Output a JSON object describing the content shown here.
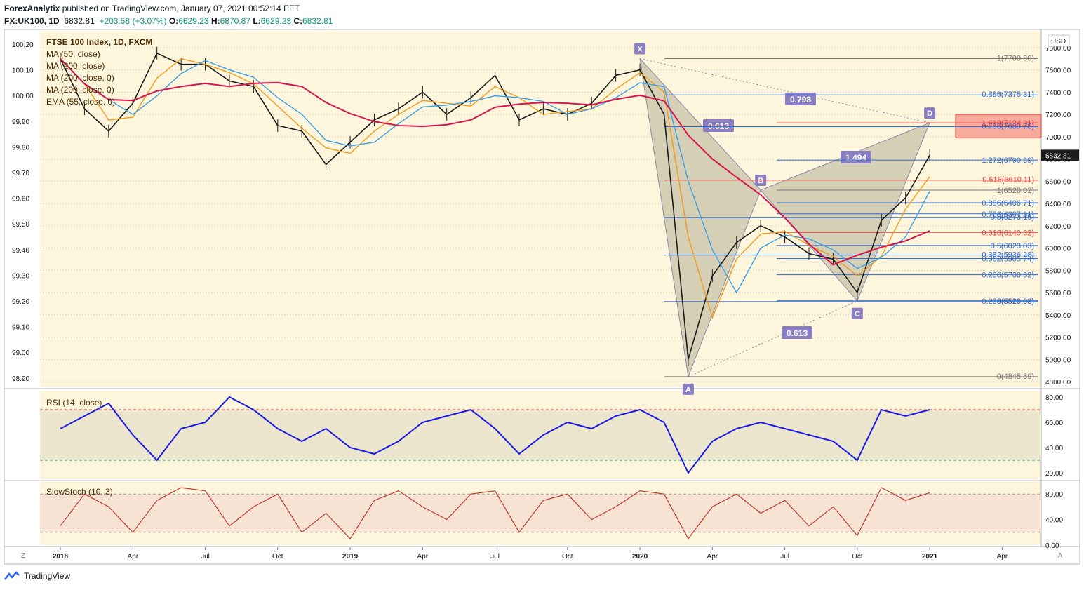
{
  "header": {
    "publisher": "ForexAnalytix",
    "published_text": "published on TradingView.com, January 07, 2021 00:52:14 EET"
  },
  "ohlc": {
    "symbol": "FX:UK100, 1D",
    "last": "6832.81",
    "change": "+203.58 (+3.07%)",
    "o_label": "O:",
    "o": "6629.23",
    "h_label": "H:",
    "h": "6870.87",
    "l_label": "L:",
    "l": "6629.23",
    "c_label": "C:",
    "c": "6832.81"
  },
  "footer": {
    "brand": "TradingView"
  },
  "colors": {
    "bg": "#fdf6dc",
    "ma50": "#f29a1b",
    "ma200": "#d6154f",
    "ema55": "#3aa0e6",
    "rsi": "#1a1ae6",
    "stoch": "#c0392b",
    "pattern_fill": "#c7c2a8",
    "fib_red": "#e53935",
    "fib_blue": "#2e6bd8",
    "fib_grey": "#777777",
    "label_bg": "#8b7fc4"
  },
  "chart_data": {
    "type": "line",
    "title": "FTSE 100 Index, 1D, FXCM",
    "indicators": [
      "MA (50, close)",
      "MA (200, close)",
      "MA (200, close, 0)",
      "MA (200, close, 0)",
      "EMA (55, close, 0)"
    ],
    "y_right_ticks": [
      "7800.00",
      "7600.00",
      "7400.00",
      "7200.00",
      "7000.00",
      "6800.00",
      "6600.00",
      "6400.00",
      "6200.00",
      "6000.00",
      "5800.00",
      "5600.00",
      "5400.00",
      "5200.00",
      "5000.00",
      "4800.00"
    ],
    "y_left_ticks": [
      "100.20",
      "100.10",
      "100.00",
      "99.90",
      "99.80",
      "99.70",
      "99.60",
      "99.50",
      "99.40",
      "99.30",
      "99.20",
      "99.10",
      "99.00",
      "98.90"
    ],
    "currency": "USD",
    "last_price_label": "6832.81",
    "ylim": [
      4750,
      7950
    ],
    "x_ticks": [
      "2018",
      "Apr",
      "Jul",
      "Oct",
      "2019",
      "Apr",
      "Jul",
      "Oct",
      "2020",
      "Apr",
      "Jul",
      "Oct",
      "2021",
      "Apr"
    ],
    "price_series": {
      "name": "UK100",
      "x": [
        "2018-01",
        "2018-02",
        "2018-03",
        "2018-04",
        "2018-05",
        "2018-06",
        "2018-07",
        "2018-08",
        "2018-09",
        "2018-10",
        "2018-11",
        "2018-12",
        "2019-01",
        "2019-02",
        "2019-03",
        "2019-04",
        "2019-05",
        "2019-06",
        "2019-07",
        "2019-08",
        "2019-09",
        "2019-10",
        "2019-11",
        "2019-12",
        "2020-01",
        "2020-02",
        "2020-03",
        "2020-04",
        "2020-05",
        "2020-06",
        "2020-07",
        "2020-08",
        "2020-09",
        "2020-10",
        "2020-11",
        "2020-12",
        "2021-01"
      ],
      "values": [
        7700,
        7250,
        7050,
        7300,
        7750,
        7650,
        7650,
        7500,
        7450,
        7100,
        7050,
        6750,
        6950,
        7150,
        7250,
        7400,
        7200,
        7350,
        7550,
        7150,
        7250,
        7200,
        7300,
        7550,
        7600,
        7200,
        5000,
        5750,
        6050,
        6200,
        6100,
        5950,
        5900,
        5600,
        6250,
        6450,
        6832.81
      ]
    },
    "harmonic_pattern": {
      "points": [
        {
          "label": "X",
          "x": "2020-01",
          "y": 7700.8
        },
        {
          "label": "A",
          "x": "2020-03",
          "y": 4845.59
        },
        {
          "label": "B",
          "x": "2020-06",
          "y": 6520.02
        },
        {
          "label": "C",
          "x": "2020-10",
          "y": 5526.03
        },
        {
          "label": "D",
          "x": "2021-01",
          "y": 7124.31
        }
      ],
      "ratios": [
        "0.613",
        "0.613",
        "0.798",
        "1.494"
      ]
    },
    "fib_levels_left": [
      {
        "label": "1(7700.80)",
        "y": 7700.8,
        "color": "grey"
      },
      {
        "label": "0.886(7375.31)",
        "y": 7375.31,
        "color": "blue"
      },
      {
        "label": "0.786(7089.78)",
        "y": 7089.78,
        "color": "blue"
      },
      {
        "label": "0.618(6610.11)",
        "y": 6610.11,
        "color": "red"
      },
      {
        "label": "0.5(6273.19)",
        "y": 6273.19,
        "color": "blue"
      },
      {
        "label": "0.382(5936.28)",
        "y": 5936.28,
        "color": "blue"
      },
      {
        "label": "0.236(5519.03)",
        "y": 5519.03,
        "color": "blue"
      },
      {
        "label": "0(4845.59)",
        "y": 4845.59,
        "color": "grey"
      }
    ],
    "fib_levels_right": [
      {
        "label": "1.618(7124.31)",
        "y": 7124.31,
        "color": "red"
      },
      {
        "label": "1.272(6790.39)",
        "y": 6790.39,
        "color": "blue"
      },
      {
        "label": "1(6520.02)",
        "y": 6520.02,
        "color": "grey"
      },
      {
        "label": "0.886(6406.71)",
        "y": 6406.71,
        "color": "blue"
      },
      {
        "label": "0.786(6307.31)",
        "y": 6307.31,
        "color": "blue"
      },
      {
        "label": "0.618(6140.32)",
        "y": 6140.32,
        "color": "red"
      },
      {
        "label": "0.5(6023.03)",
        "y": 6023.03,
        "color": "blue"
      },
      {
        "label": "0.382(5905.74)",
        "y": 5905.74,
        "color": "blue"
      },
      {
        "label": "0.236(5760.62)",
        "y": 5760.62,
        "color": "blue"
      },
      {
        "label": "0(5526.03)",
        "y": 5526.03,
        "color": "blue"
      }
    ],
    "rsi": {
      "title": "RSI (14, close)",
      "ticks": [
        "80.00",
        "60.00",
        "40.00",
        "20.00"
      ],
      "overbought": 70,
      "oversold": 30,
      "ylim": [
        15,
        85
      ],
      "values": [
        55,
        65,
        75,
        50,
        30,
        55,
        60,
        80,
        70,
        55,
        45,
        55,
        40,
        35,
        45,
        60,
        65,
        70,
        55,
        35,
        50,
        60,
        55,
        65,
        70,
        60,
        20,
        45,
        55,
        60,
        55,
        50,
        45,
        30,
        70,
        65,
        70
      ]
    },
    "stoch": {
      "title": "SlowStoch (10, 3)",
      "ticks": [
        "80.00",
        "40.00",
        "0.00"
      ],
      "ylim": [
        0,
        100
      ],
      "values": [
        30,
        80,
        60,
        20,
        70,
        90,
        85,
        30,
        60,
        80,
        20,
        50,
        10,
        70,
        85,
        60,
        40,
        80,
        85,
        20,
        70,
        80,
        40,
        60,
        85,
        80,
        10,
        60,
        80,
        50,
        70,
        30,
        60,
        15,
        90,
        70,
        82
      ]
    }
  }
}
